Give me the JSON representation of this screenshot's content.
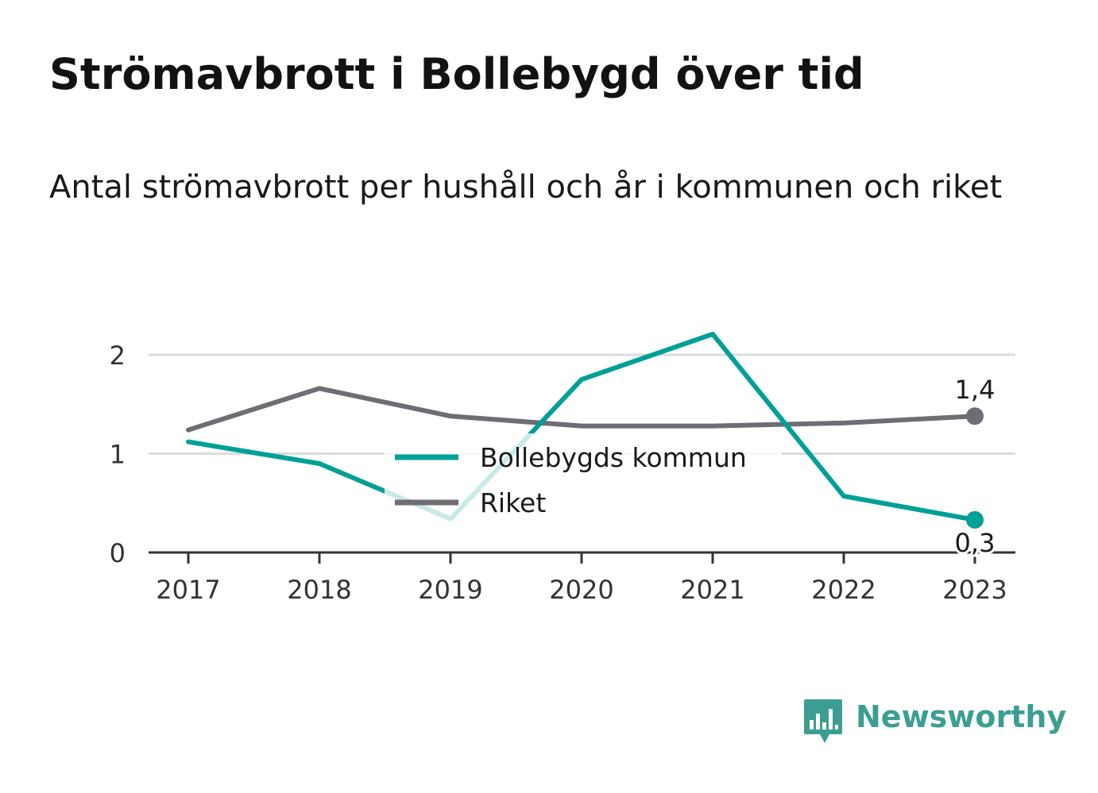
{
  "title": "Strömavbrott i Bollebygd över tid",
  "subtitle": "Antal strömavbrott per hushåll och år i kommunen och riket",
  "chart_data": {
    "type": "line",
    "categories": [
      "2017",
      "2018",
      "2019",
      "2020",
      "2021",
      "2022",
      "2023"
    ],
    "series": [
      {
        "name": "Bollebygds kommun",
        "color": "#00a096",
        "values": [
          1.12,
          0.9,
          0.34,
          1.75,
          2.21,
          0.57,
          0.33
        ]
      },
      {
        "name": "Riket",
        "color": "#6e6d74",
        "values": [
          1.24,
          1.66,
          1.38,
          1.28,
          1.28,
          1.31,
          1.38
        ]
      }
    ],
    "end_labels": [
      "0,3",
      "1,4"
    ],
    "y_ticks": [
      "0",
      "1",
      "2"
    ],
    "ylim": [
      0,
      2.5
    ],
    "grid": true,
    "legend_position": "center"
  },
  "brand": {
    "name": "Newsworthy",
    "color": "#3c9e92",
    "icon": "bar-chart-speech-bubble-icon"
  }
}
